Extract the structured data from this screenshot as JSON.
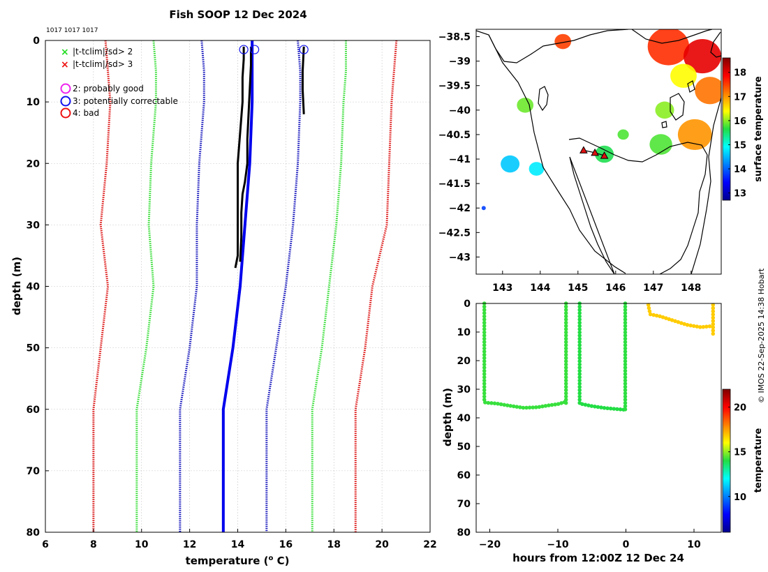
{
  "page": {
    "title": "Fish SOOP 12 Dec 2024",
    "cruise_ids": "1017 1017 1017",
    "credit": "© IMOS 22-Sep-2025 14:38 Hobart"
  },
  "chart_data": [
    {
      "id": "profile",
      "type": "line",
      "xlabel_main": "temperature (",
      "xlabel_sup": "o",
      "xlabel_end": " C)",
      "ylabel": "depth (m)",
      "xlim": [
        6,
        22
      ],
      "ylim": [
        0,
        80
      ],
      "y_inverted": true,
      "xticks": [
        6,
        8,
        10,
        12,
        14,
        16,
        18,
        20,
        22
      ],
      "yticks": [
        0,
        10,
        20,
        30,
        40,
        50,
        60,
        70,
        80
      ],
      "grid": true,
      "legend": [
        {
          "marker": "x",
          "color": "#22dd22",
          "label": "|t-tclim|/sd> 2"
        },
        {
          "marker": "x",
          "color": "#ee1111",
          "label": "|t-tclim|/sd> 3"
        },
        {
          "marker": "o",
          "color": "#ee22ee",
          "label": "2: probably good"
        },
        {
          "marker": "o",
          "color": "#1111ee",
          "label": "3: potentially correctable"
        },
        {
          "marker": "o",
          "color": "#ee1111",
          "label": "4: bad"
        }
      ],
      "climatology": [
        {
          "name": "clim -3sd",
          "color": "#dd1111",
          "depth": [
            0,
            5,
            10,
            20,
            30,
            40,
            50,
            60,
            70,
            80
          ],
          "temp": [
            8.5,
            8.6,
            8.7,
            8.55,
            8.3,
            8.6,
            8.3,
            8.0,
            8.0,
            8.0
          ]
        },
        {
          "name": "clim -2sd",
          "color": "#33dd33",
          "depth": [
            0,
            5,
            10,
            20,
            30,
            40,
            50,
            60,
            70,
            80
          ],
          "temp": [
            10.5,
            10.6,
            10.6,
            10.4,
            10.3,
            10.5,
            10.2,
            9.8,
            9.8,
            9.8
          ]
        },
        {
          "name": "clim -1sd",
          "color": "#1111bb",
          "depth": [
            0,
            5,
            10,
            20,
            30,
            40,
            50,
            60,
            70,
            80
          ],
          "temp": [
            12.5,
            12.6,
            12.6,
            12.4,
            12.3,
            12.3,
            12.0,
            11.6,
            11.6,
            11.6
          ]
        },
        {
          "name": "clim mean",
          "color": "#0000ee",
          "depth": [
            0,
            10,
            20,
            30,
            40,
            50,
            60,
            70,
            80
          ],
          "temp": [
            14.6,
            14.6,
            14.5,
            14.3,
            14.1,
            13.8,
            13.4,
            13.4,
            13.4
          ]
        },
        {
          "name": "clim +1sd",
          "color": "#1111bb",
          "depth": [
            0,
            5,
            10,
            20,
            30,
            40,
            50,
            60,
            70,
            80
          ],
          "temp": [
            16.5,
            16.6,
            16.6,
            16.5,
            16.3,
            16.0,
            15.6,
            15.2,
            15.2,
            15.2
          ]
        },
        {
          "name": "clim +2sd",
          "color": "#33dd33",
          "depth": [
            0,
            5,
            10,
            20,
            30,
            40,
            50,
            60,
            70,
            80
          ],
          "temp": [
            18.5,
            18.5,
            18.4,
            18.3,
            18.1,
            17.8,
            17.5,
            17.1,
            17.1,
            17.1
          ]
        },
        {
          "name": "clim +3sd",
          "color": "#dd1111",
          "depth": [
            0,
            5,
            10,
            20,
            30,
            40,
            50,
            60,
            70,
            80
          ],
          "temp": [
            20.6,
            20.5,
            20.4,
            20.3,
            20.2,
            19.6,
            19.3,
            18.9,
            18.9,
            18.9
          ]
        }
      ],
      "profiles": [
        {
          "name": "profile 1",
          "color": "#000000",
          "depth": [
            1,
            3,
            6,
            10,
            15,
            20,
            25,
            30,
            35,
            37
          ],
          "temp": [
            14.25,
            14.25,
            14.2,
            14.2,
            14.1,
            14.0,
            14.0,
            14.0,
            14.0,
            13.9
          ]
        },
        {
          "name": "profile 2",
          "color": "#000000",
          "depth": [
            1,
            4,
            8,
            12,
            16,
            20,
            23,
            25,
            28,
            32,
            36
          ],
          "temp": [
            14.55,
            14.55,
            14.5,
            14.45,
            14.4,
            14.4,
            14.3,
            14.2,
            14.15,
            14.15,
            14.1
          ]
        },
        {
          "name": "profile 3",
          "color": "#000000",
          "depth": [
            1,
            5,
            8,
            12
          ],
          "temp": [
            16.75,
            16.7,
            16.7,
            16.75
          ]
        }
      ],
      "qc_circles": [
        {
          "temp": 14.25,
          "depth": 0.8,
          "color": "#1111ee"
        },
        {
          "temp": 14.7,
          "depth": 0.8,
          "color": "#1111ee"
        },
        {
          "temp": 16.75,
          "depth": 0.8,
          "color": "#1111ee"
        }
      ]
    },
    {
      "id": "map",
      "type": "heatmap",
      "xlim": [
        142.3,
        148.8
      ],
      "ylim": [
        -43.35,
        -38.35
      ],
      "xticks": [
        143,
        144,
        145,
        146,
        147,
        148
      ],
      "yticks": [
        -38.5,
        -39,
        -39.5,
        -40,
        -40.5,
        -41,
        -41.5,
        -42,
        -42.5,
        -43
      ],
      "colorbar_label": "surface temperature",
      "colorbar_ticks": [
        13,
        14,
        15,
        16,
        17,
        18
      ],
      "colorbar_range": [
        12.7,
        18.6
      ],
      "sst_blobs": [
        {
          "lon": 147.4,
          "lat": -38.7,
          "r": 0.55,
          "temp": 17.6
        },
        {
          "lon": 148.3,
          "lat": -38.9,
          "r": 0.5,
          "temp": 18.0
        },
        {
          "lon": 148.5,
          "lat": -39.6,
          "r": 0.4,
          "temp": 17.2
        },
        {
          "lon": 147.8,
          "lat": -39.3,
          "r": 0.35,
          "temp": 16.4
        },
        {
          "lon": 144.6,
          "lat": -38.6,
          "r": 0.22,
          "temp": 17.5
        },
        {
          "lon": 143.6,
          "lat": -39.9,
          "r": 0.22,
          "temp": 15.9
        },
        {
          "lon": 147.3,
          "lat": -40.0,
          "r": 0.25,
          "temp": 16.0
        },
        {
          "lon": 148.1,
          "lat": -40.5,
          "r": 0.45,
          "temp": 17.0
        },
        {
          "lon": 147.2,
          "lat": -40.7,
          "r": 0.3,
          "temp": 15.8
        },
        {
          "lon": 145.7,
          "lat": -40.9,
          "r": 0.25,
          "temp": 15.6
        },
        {
          "lon": 143.2,
          "lat": -41.1,
          "r": 0.25,
          "temp": 14.6
        },
        {
          "lon": 143.9,
          "lat": -41.2,
          "r": 0.2,
          "temp": 14.8
        },
        {
          "lon": 146.2,
          "lat": -40.5,
          "r": 0.15,
          "temp": 15.8
        },
        {
          "lon": 142.5,
          "lat": -42.0,
          "r": 0.05,
          "temp": 13.8
        }
      ],
      "track": [
        {
          "lon": 145.15,
          "lat": -40.82
        },
        {
          "lon": 145.45,
          "lat": -40.87
        },
        {
          "lon": 145.7,
          "lat": -40.93
        }
      ]
    },
    {
      "id": "depth_time",
      "type": "scatter",
      "xlabel": "hours from 12:00Z 12 Dec 24",
      "ylabel": "depth (m)",
      "xlim": [
        -22,
        14
      ],
      "ylim": [
        0,
        80
      ],
      "y_inverted": true,
      "xticks": [
        -20,
        -10,
        0,
        10
      ],
      "yticks": [
        0,
        10,
        20,
        30,
        40,
        50,
        60,
        70,
        80
      ],
      "colorbar_label": "temperature",
      "colorbar_ticks": [
        10,
        15,
        20
      ],
      "colorbar_range": [
        6,
        22
      ],
      "segments": [
        {
          "hours": [
            -20.8,
            -20.8,
            -20.6,
            -19,
            -17,
            -15,
            -13,
            -11.5,
            -10,
            -9
          ],
          "depth": [
            0,
            34.5,
            34.7,
            35.0,
            35.8,
            36.5,
            36.3,
            35.7,
            35.2,
            34.5
          ],
          "temp": 14.2
        },
        {
          "hours": [
            -8.8,
            -8.8
          ],
          "depth": [
            0,
            35.5
          ],
          "temp": 14.2
        },
        {
          "hours": [
            -6.8,
            -6.8,
            -6.4,
            -5,
            -3,
            -1,
            -0.1
          ],
          "depth": [
            0,
            35.0,
            35.2,
            35.9,
            36.6,
            37.0,
            37.2
          ],
          "temp": 14.0
        },
        {
          "hours": [
            -0.1,
            -0.1
          ],
          "depth": [
            0,
            38.0
          ],
          "temp": 14.1
        },
        {
          "hours": [
            3.3,
            3.4,
            3.6,
            5,
            7,
            9,
            11,
            12.3,
            12.7
          ],
          "depth": [
            0.5,
            2,
            3.8,
            4.5,
            6.0,
            7.5,
            8.3,
            8.0,
            8.0
          ],
          "temp": 16.8
        },
        {
          "hours": [
            12.8,
            12.8
          ],
          "depth": [
            0.5,
            11.5
          ],
          "temp": 16.8
        }
      ]
    }
  ]
}
